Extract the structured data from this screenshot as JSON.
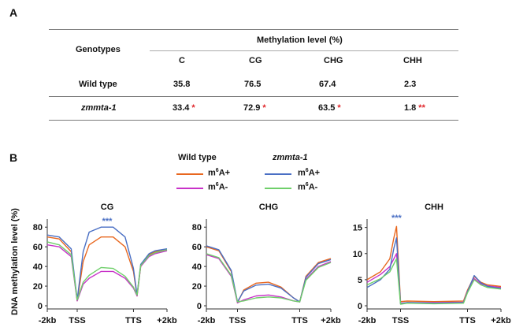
{
  "panel_a": {
    "letter": "A",
    "genotypes_header": "Genotypes",
    "group_header": "Methylation level (%)",
    "columns": [
      "C",
      "CG",
      "CHG",
      "CHH"
    ],
    "rows": [
      {
        "genotype": "Wild type",
        "values": [
          "35.8",
          "76.5",
          "67.4",
          "2.3"
        ],
        "stars": [
          "",
          "",
          "",
          ""
        ]
      },
      {
        "genotype": "zmmta-1",
        "values": [
          "33.4",
          "72.9",
          "63.5",
          "1.8"
        ],
        "stars": [
          "*",
          "*",
          "*",
          "**"
        ]
      }
    ]
  },
  "panel_b": {
    "letter": "B",
    "legend": {
      "group1": "Wild type",
      "group2": "zmmta-1",
      "labels": [
        "m6A+",
        "m6A-",
        "m6A+",
        "m6A-"
      ],
      "colors": [
        "#e8671f",
        "#c832c8",
        "#4a6fc4",
        "#6fcf6a"
      ]
    }
  },
  "colors": {
    "wt_pos": "#e8671f",
    "wt_neg": "#c832c8",
    "mu_pos": "#4a6fc4",
    "mu_neg": "#6fcf6a",
    "star_red": "#e0262a",
    "star_blue": "#4a6fc4"
  },
  "chart_data": [
    {
      "type": "line",
      "title": "CG",
      "ylabel": "DNA methylation level (%)",
      "ylim": [
        0,
        85
      ],
      "yticks": [
        0,
        20,
        40,
        60,
        80
      ],
      "xticklabels": [
        "-2kb",
        "TSS",
        "TTS",
        "+2kb"
      ],
      "annotation": "***",
      "x": [
        0,
        0.1,
        0.2,
        0.25,
        0.3,
        0.35,
        0.45,
        0.55,
        0.65,
        0.72,
        0.75,
        0.78,
        0.85,
        0.9,
        1.0
      ],
      "series": [
        {
          "name": "Wild type m6A+",
          "values": [
            70,
            68,
            55,
            5,
            45,
            62,
            70,
            70,
            60,
            35,
            10,
            40,
            52,
            55,
            57
          ]
        },
        {
          "name": "Wild type m6A-",
          "values": [
            62,
            60,
            50,
            5,
            22,
            28,
            35,
            35,
            28,
            18,
            10,
            40,
            50,
            53,
            56
          ]
        },
        {
          "name": "zmmta-1 m6A+",
          "values": [
            72,
            70,
            58,
            6,
            55,
            75,
            80,
            80,
            70,
            38,
            11,
            42,
            53,
            56,
            58
          ]
        },
        {
          "name": "zmmta-1 m6A-",
          "values": [
            65,
            62,
            52,
            6,
            24,
            31,
            39,
            38,
            30,
            19,
            11,
            41,
            51,
            54,
            57
          ]
        }
      ]
    },
    {
      "type": "line",
      "title": "CHG",
      "ylim": [
        0,
        85
      ],
      "yticks": [
        0,
        20,
        40,
        60,
        80
      ],
      "xticklabels": [
        "-2kb",
        "TSS",
        "TTS",
        "+2kb"
      ],
      "x": [
        0,
        0.1,
        0.2,
        0.25,
        0.3,
        0.4,
        0.5,
        0.6,
        0.7,
        0.75,
        0.8,
        0.9,
        1.0
      ],
      "series": [
        {
          "name": "Wild type m6A+",
          "values": [
            60,
            56,
            35,
            3,
            16,
            23,
            24,
            19,
            8,
            4,
            30,
            44,
            48
          ]
        },
        {
          "name": "Wild type m6A-",
          "values": [
            52,
            48,
            30,
            3,
            6,
            10,
            11,
            9,
            5,
            4,
            27,
            40,
            45
          ]
        },
        {
          "name": "zmmta-1 m6A+",
          "values": [
            61,
            57,
            36,
            4,
            15,
            21,
            22,
            18,
            8,
            4,
            29,
            43,
            47
          ]
        },
        {
          "name": "zmmta-1 m6A-",
          "values": [
            53,
            49,
            31,
            4,
            5,
            8,
            9,
            8,
            5,
            4,
            26,
            39,
            44
          ]
        }
      ]
    },
    {
      "type": "line",
      "title": "CHH",
      "ylim": [
        0,
        16
      ],
      "yticks": [
        0,
        5,
        10,
        15
      ],
      "xticklabels": [
        "-2kb",
        "TSS",
        "TTS",
        "+2kb"
      ],
      "annotation": "***",
      "x": [
        0,
        0.1,
        0.17,
        0.2,
        0.22,
        0.25,
        0.3,
        0.5,
        0.72,
        0.75,
        0.8,
        0.85,
        0.9,
        1.0
      ],
      "series": [
        {
          "name": "Wild type m6A+",
          "values": [
            5,
            6.5,
            9,
            13,
            15.2,
            0.8,
            0.9,
            0.8,
            0.9,
            3,
            5.6,
            4.5,
            4,
            3.7
          ]
        },
        {
          "name": "Wild type m6A-",
          "values": [
            4.5,
            6,
            7.5,
            9,
            10,
            0.5,
            0.6,
            0.6,
            0.7,
            2.8,
            5.2,
            4.2,
            3.8,
            3.5
          ]
        },
        {
          "name": "zmmta-1 m6A+",
          "values": [
            3.5,
            5,
            7,
            11,
            13,
            0.4,
            0.6,
            0.5,
            0.6,
            2.7,
            5.8,
            4.4,
            3.7,
            3.3
          ]
        },
        {
          "name": "zmmta-1 m6A-",
          "values": [
            4,
            5.2,
            6.5,
            8,
            9,
            0.3,
            0.5,
            0.4,
            0.5,
            2.5,
            5,
            4,
            3.5,
            3.2
          ]
        }
      ]
    }
  ]
}
